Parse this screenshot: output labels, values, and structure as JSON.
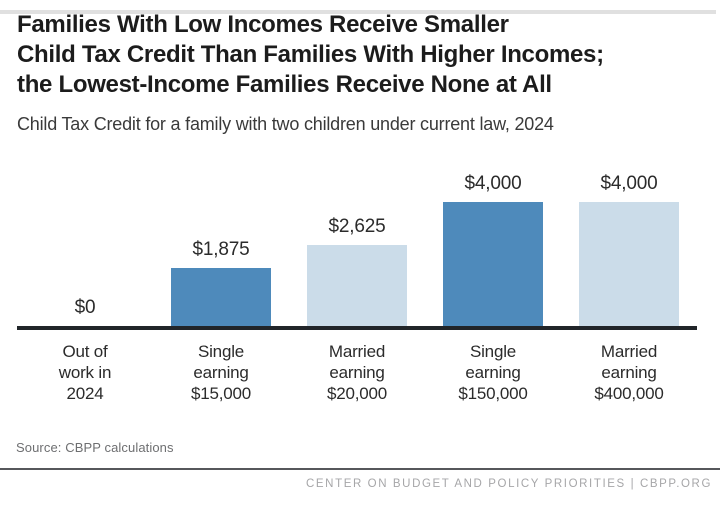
{
  "header": {
    "title_lines": [
      "Families With Low Incomes Receive Smaller",
      "Child Tax Credit Than Families With Higher Incomes;",
      "the Lowest-Income Families Receive None at All"
    ],
    "subtitle": "Child Tax Credit for a family with two children under current law, 2024"
  },
  "chart_data": {
    "type": "bar",
    "title": "Child Tax Credit for a family with two children under current law, 2024",
    "categories": [
      [
        "Out of",
        "work in",
        "2024"
      ],
      [
        "Single",
        "earning",
        "$15,000"
      ],
      [
        "Married",
        "earning",
        "$20,000"
      ],
      [
        "Single",
        "earning",
        "$150,000"
      ],
      [
        "Married",
        "earning",
        "$400,000"
      ]
    ],
    "values": [
      0,
      1875,
      2625,
      4000,
      4000
    ],
    "value_labels": [
      "$0",
      "$1,875",
      "$2,625",
      "$4,000",
      "$4,000"
    ],
    "xlabel": "",
    "ylabel": "",
    "ylim": [
      0,
      4000
    ],
    "grid": false,
    "legend": "none",
    "bar_colors": [
      "#4e8abb",
      "#4e8abb",
      "#cbdce9",
      "#4e8abb",
      "#cbdce9"
    ],
    "colors": {
      "dark_blue": "#4e8abb",
      "light_blue": "#cbdce9",
      "axis": "#212529"
    }
  },
  "source": {
    "text": "Source: CBPP calculations"
  },
  "footer": {
    "text": "CENTER ON BUDGET AND POLICY PRIORITIES | CBPP.ORG"
  }
}
